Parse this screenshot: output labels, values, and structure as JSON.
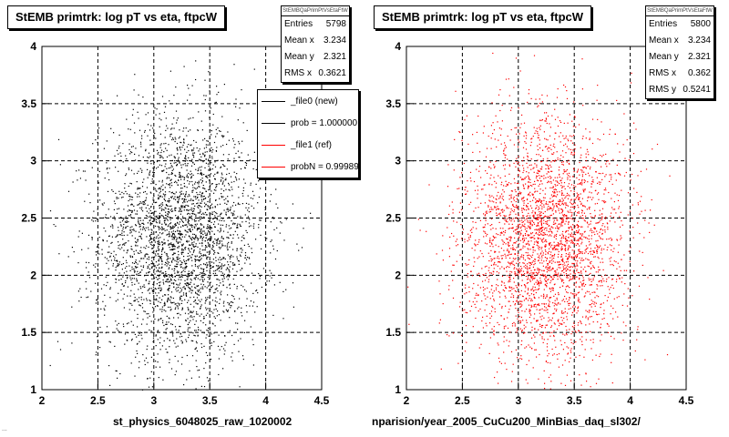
{
  "colors": {
    "new": "#000000",
    "ref": "#ff0000"
  },
  "left": {
    "title": "StEMB primtrk: log pT vs eta, ftpcW",
    "stats": {
      "name": "StEMBQaPrimPtVsEtaFtW",
      "rows": [
        {
          "label": "Entries",
          "value": "5798"
        },
        {
          "label": "Mean x",
          "value": "3.234"
        },
        {
          "label": "Mean y",
          "value": "2.321"
        },
        {
          "label": "RMS x",
          "value": "0.3621"
        }
      ]
    },
    "legend": [
      {
        "label": "_file0 (new)",
        "color": "#000000"
      },
      {
        "label": "prob = 1.000000",
        "color": "#000000"
      },
      {
        "label": "_file1 (ref)",
        "color": "#ff0000"
      },
      {
        "label": "probN = 0.99989",
        "color": "#ff0000"
      }
    ],
    "xlabel": "st_physics_6048025_raw_1020002"
  },
  "right": {
    "title": "StEMB primtrk: log pT vs eta, ftpcW",
    "stats": {
      "name": "StEMBQaPrimPtVsEtaFtW",
      "rows": [
        {
          "label": "Entries",
          "value": "5800"
        },
        {
          "label": "Mean x",
          "value": "3.234"
        },
        {
          "label": "Mean y",
          "value": "2.321"
        },
        {
          "label": "RMS x",
          "value": "0.362"
        },
        {
          "label": "RMS y",
          "value": "0.5241"
        }
      ]
    },
    "xlabel": "nparision/year_2005_CuCu200_MinBias_daq_sl302/"
  },
  "footer": "...",
  "chart_data": [
    {
      "type": "scatter",
      "title": "StEMB primtrk: log pT vs eta, ftpcW",
      "xlabel": "st_physics_6048025_raw_1020002",
      "ylabel": "",
      "xlim": [
        2,
        4.5
      ],
      "ylim": [
        1,
        4
      ],
      "xticks": [
        "2",
        "2.5",
        "3",
        "3.5",
        "4",
        "4.5"
      ],
      "yticks": [
        "1",
        "1.5",
        "2",
        "2.5",
        "3",
        "3.5",
        "4"
      ],
      "grid": true,
      "series": [
        {
          "name": "_file0 (new)",
          "color": "#000000",
          "entries": 5798,
          "mean_x": 3.234,
          "mean_y": 2.321,
          "rms_x": 0.3621,
          "rms_y": 0.5241
        }
      ]
    },
    {
      "type": "scatter",
      "title": "StEMB primtrk: log pT vs eta, ftpcW",
      "xlabel": "nparision/year_2005_CuCu200_MinBias_daq_sl302/",
      "ylabel": "",
      "xlim": [
        2,
        4.5
      ],
      "ylim": [
        1,
        4
      ],
      "xticks": [
        "2",
        "2.5",
        "3",
        "3.5",
        "4",
        "4.5"
      ],
      "yticks": [
        "1",
        "1.5",
        "2",
        "2.5",
        "3",
        "3.5",
        "4"
      ],
      "grid": true,
      "series": [
        {
          "name": "_file1 (ref)",
          "color": "#ff0000",
          "entries": 5800,
          "mean_x": 3.234,
          "mean_y": 2.321,
          "rms_x": 0.362,
          "rms_y": 0.5241
        }
      ]
    }
  ]
}
